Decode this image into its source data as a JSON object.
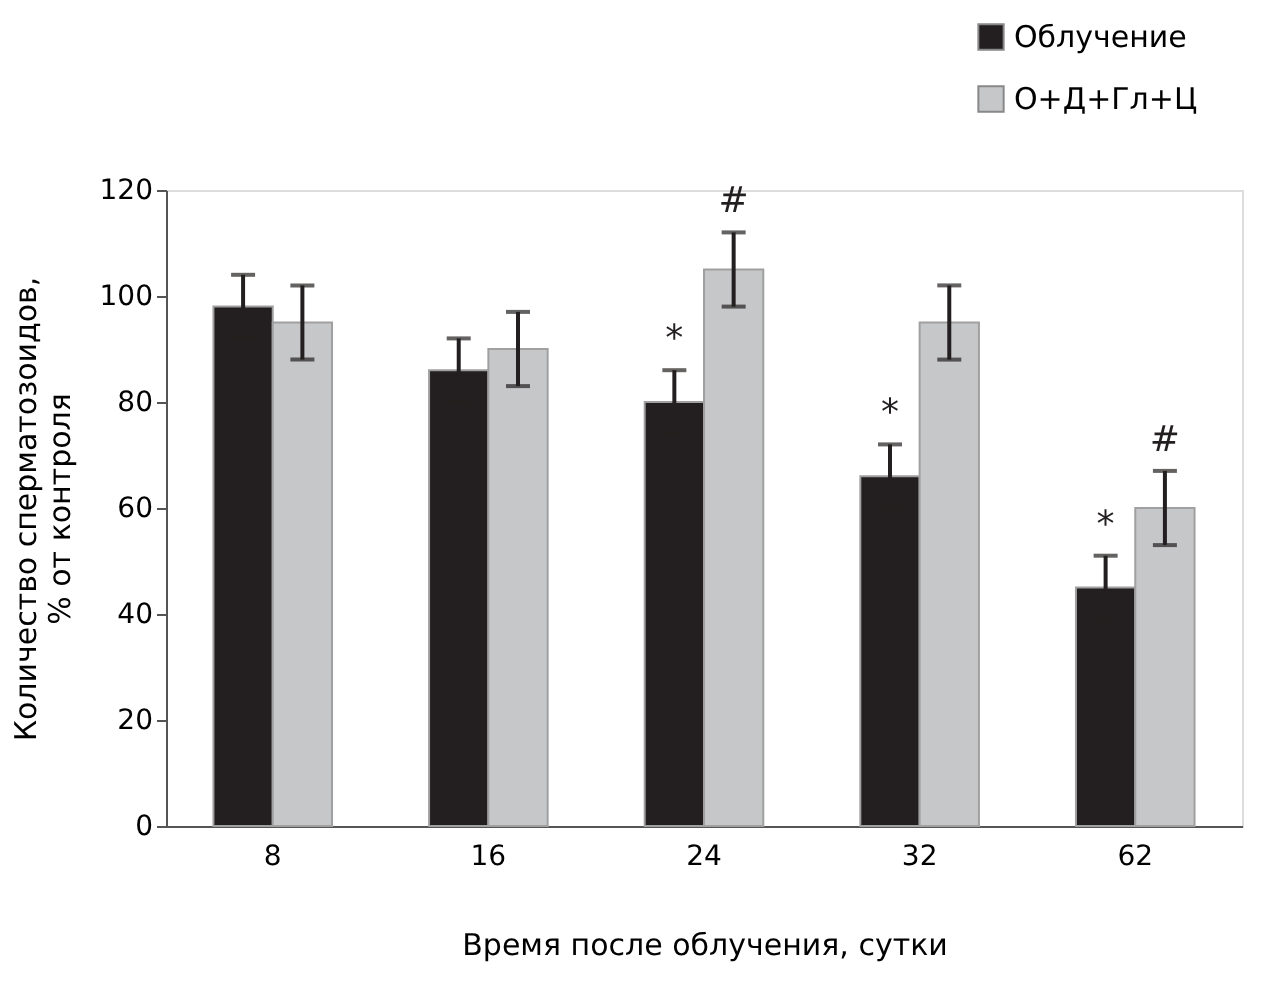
{
  "chart_data": {
    "type": "bar",
    "xlabel": "Время после облучения, сутки",
    "ylabel": "Количество сперматозоидов, % от контроля",
    "categories": [
      "8",
      "16",
      "24",
      "32",
      "62"
    ],
    "series": [
      {
        "name": "Облучение",
        "color": "#231f20",
        "values": [
          98,
          86,
          80,
          66,
          45
        ],
        "errors": [
          6,
          6,
          6,
          6,
          6
        ]
      },
      {
        "name": "О+Д+Гл+Ц",
        "color": "#c6c7c9",
        "values": [
          95,
          90,
          105,
          95,
          60
        ],
        "errors": [
          7,
          7,
          7,
          7,
          7
        ]
      }
    ],
    "ylim": [
      0,
      120
    ],
    "yticks": [
      0,
      20,
      40,
      60,
      80,
      100,
      120
    ],
    "grid": false,
    "legend": "top right",
    "annotations": [
      {
        "text": "*",
        "x": "24",
        "y": 80
      },
      {
        "text": "#",
        "x": "24",
        "y": 105
      },
      {
        "text": "*",
        "x": "32",
        "y": 66
      },
      {
        "text": "*",
        "x": "62",
        "y": 45
      },
      {
        "text": "#",
        "x": "62",
        "y": 60
      }
    ]
  }
}
